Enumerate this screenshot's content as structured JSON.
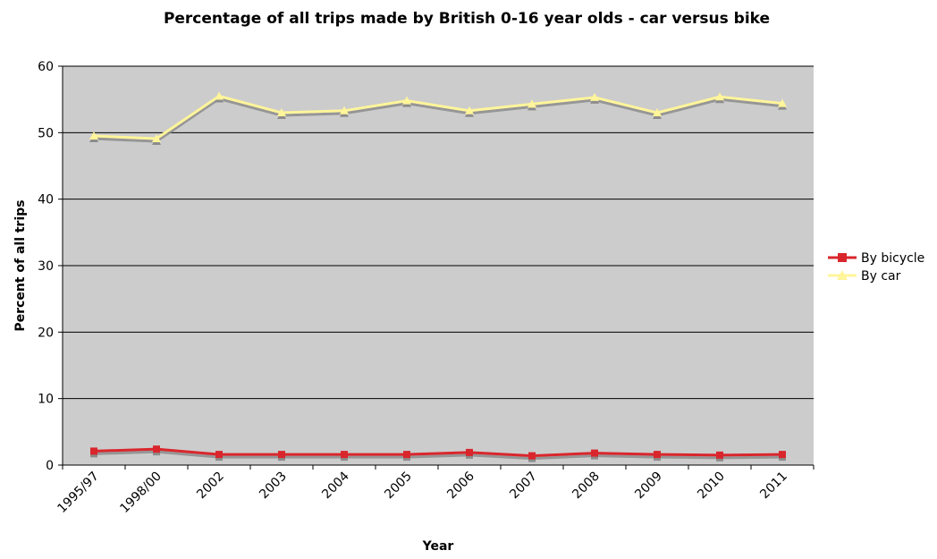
{
  "chart_data": {
    "type": "line",
    "title": "Percentage of all trips made by British 0-16 year olds - car versus bike",
    "xlabel": "Year",
    "ylabel": "Percent of all trips",
    "ylim": [
      0,
      60
    ],
    "yticks": [
      0,
      10,
      20,
      30,
      40,
      50,
      60
    ],
    "grid": true,
    "legend_position": "right",
    "categories": [
      "1995/97",
      "1998/00",
      "2002",
      "2003",
      "2004",
      "2005",
      "2006",
      "2007",
      "2008",
      "2009",
      "2010",
      "2011"
    ],
    "series": [
      {
        "name": "By bicycle",
        "marker": "square",
        "color": "#d9262c",
        "values": [
          2.1,
          2.4,
          1.6,
          1.6,
          1.6,
          1.6,
          1.9,
          1.4,
          1.8,
          1.6,
          1.5,
          1.6
        ]
      },
      {
        "name": "By car",
        "marker": "triangle",
        "color": "#fff59a",
        "values": [
          49.5,
          49.1,
          55.5,
          53.0,
          53.3,
          54.8,
          53.3,
          54.3,
          55.3,
          53.0,
          55.4,
          54.4
        ]
      }
    ]
  },
  "colors": {
    "plot_background": "#cccccc",
    "gridline": "#000000",
    "shadow": "#8c8c8c"
  }
}
